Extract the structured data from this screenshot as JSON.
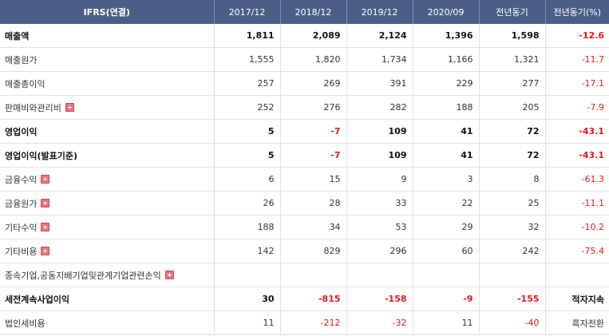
{
  "table": {
    "headers": [
      "IFRS(연결)",
      "2017/12",
      "2018/12",
      "2019/12",
      "2020/09",
      "전년동기",
      "전년동기(%)"
    ],
    "rows": [
      {
        "label": "매출액",
        "bold": true,
        "expand": false,
        "values": [
          "1,811",
          "2,089",
          "2,124",
          "1,396",
          "1,598",
          "-12.6"
        ]
      },
      {
        "label": "매출원가",
        "bold": false,
        "expand": false,
        "values": [
          "1,555",
          "1,820",
          "1,734",
          "1,166",
          "1,321",
          "-11.7"
        ]
      },
      {
        "label": "매출총이익",
        "bold": false,
        "expand": false,
        "values": [
          "257",
          "269",
          "391",
          "229",
          "277",
          "-17.1"
        ]
      },
      {
        "label": "판매비와관리비",
        "bold": false,
        "expand": true,
        "values": [
          "252",
          "276",
          "282",
          "188",
          "205",
          "-7.9"
        ]
      },
      {
        "label": "영업이익",
        "bold": true,
        "expand": false,
        "values": [
          "5",
          "-7",
          "109",
          "41",
          "72",
          "-43.1"
        ]
      },
      {
        "label": "영업이익(발표기준)",
        "bold": true,
        "expand": false,
        "values": [
          "5",
          "-7",
          "109",
          "41",
          "72",
          "-43.1"
        ]
      },
      {
        "label": "금융수익",
        "bold": false,
        "expand": true,
        "values": [
          "6",
          "15",
          "9",
          "3",
          "8",
          "-61.3"
        ]
      },
      {
        "label": "금융원가",
        "bold": false,
        "expand": true,
        "values": [
          "26",
          "28",
          "33",
          "22",
          "25",
          "-11.1"
        ]
      },
      {
        "label": "기타수익",
        "bold": false,
        "expand": true,
        "values": [
          "188",
          "34",
          "53",
          "29",
          "32",
          "-10.2"
        ]
      },
      {
        "label": "기타비용",
        "bold": false,
        "expand": true,
        "values": [
          "142",
          "829",
          "296",
          "60",
          "242",
          "-75.4"
        ]
      },
      {
        "label": "종속기업,공동지배기업및관계기업관련손익",
        "bold": false,
        "expand": true,
        "values": [
          "",
          "",
          "",
          "",
          "",
          ""
        ]
      },
      {
        "label": "세전계속사업이익",
        "bold": true,
        "expand": false,
        "values": [
          "30",
          "-815",
          "-158",
          "-9",
          "-155",
          "적자지속"
        ]
      },
      {
        "label": "법인세비용",
        "bold": false,
        "expand": false,
        "values": [
          "11",
          "-212",
          "-32",
          "11",
          "-40",
          "흑자전환"
        ]
      }
    ]
  },
  "colors": {
    "header_bg": "#4b5f86",
    "negative": "#e21b1b",
    "expand_icon": "#e6747a"
  },
  "icons": {
    "expand": "plus-icon"
  }
}
